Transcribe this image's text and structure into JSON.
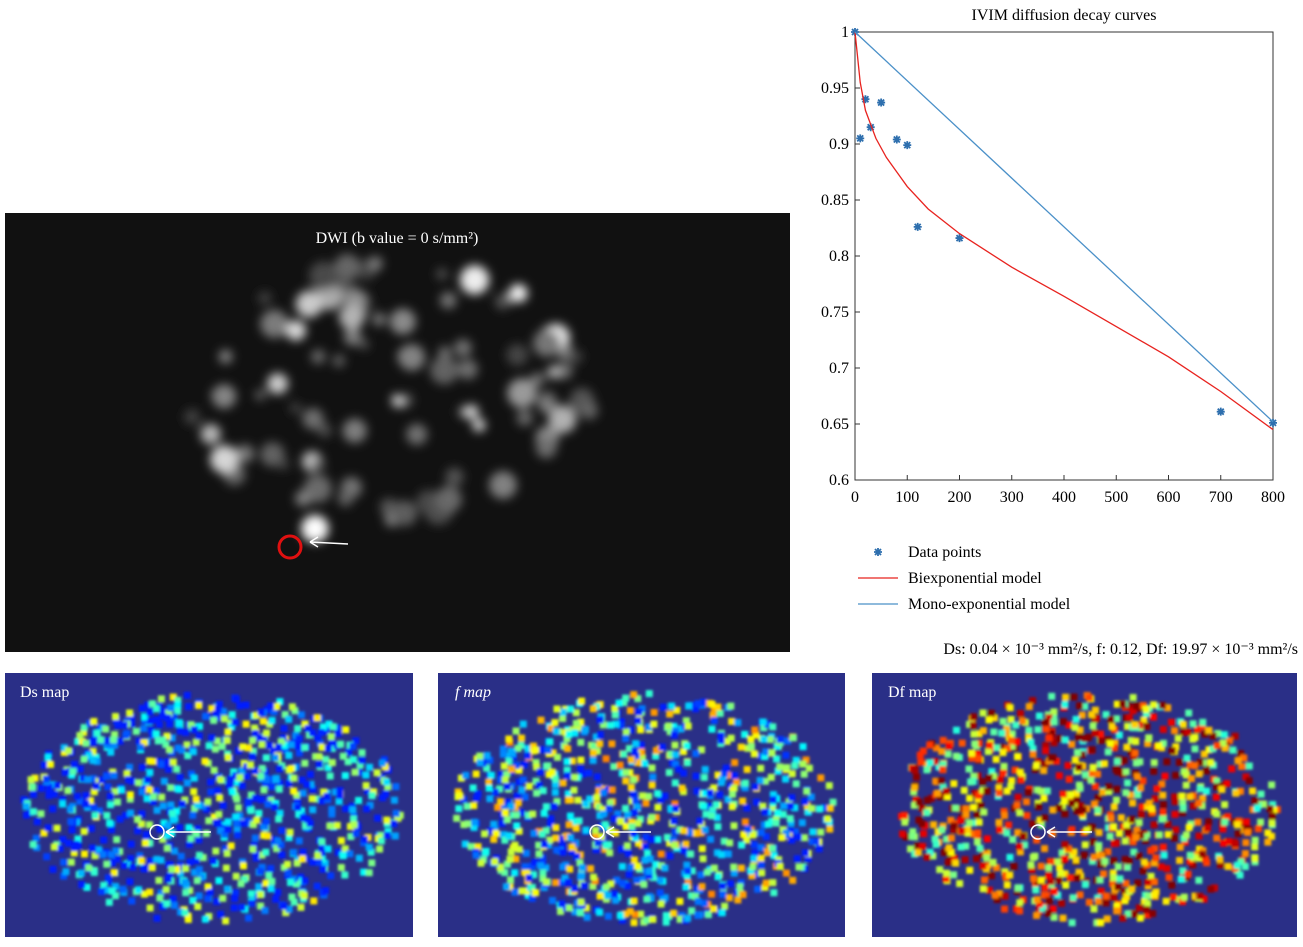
{
  "chart_data": {
    "type": "line",
    "title": "IVIM diffusion decay curves",
    "xlim": [
      0,
      800
    ],
    "xticks": [
      0,
      100,
      200,
      300,
      400,
      500,
      600,
      700,
      800
    ],
    "ylim": [
      0.6,
      1
    ],
    "yticks": [
      0.6,
      0.65,
      0.7,
      0.75,
      0.8,
      0.85,
      0.9,
      0.95,
      1
    ],
    "series": [
      {
        "name": "Data points",
        "color": "#2e6fae",
        "style": "markers",
        "x": [
          0,
          10,
          20,
          30,
          50,
          80,
          100,
          120,
          200,
          700,
          800
        ],
        "values": [
          1.0,
          0.905,
          0.94,
          0.915,
          0.937,
          0.904,
          0.899,
          0.826,
          0.816,
          0.661,
          0.651
        ]
      },
      {
        "name": "Biexponential model",
        "color": "#e8231f",
        "style": "line",
        "x": [
          0,
          10,
          20,
          40,
          60,
          80,
          100,
          140,
          200,
          300,
          400,
          500,
          600,
          700,
          800
        ],
        "values": [
          1.0,
          0.955,
          0.93,
          0.905,
          0.888,
          0.875,
          0.862,
          0.842,
          0.82,
          0.79,
          0.764,
          0.737,
          0.71,
          0.679,
          0.645
        ]
      },
      {
        "name": "Mono-exponential model",
        "color": "#4a90c8",
        "style": "line",
        "x": [
          0,
          800
        ],
        "values": [
          1.0,
          0.652
        ]
      }
    ]
  },
  "panels": {
    "dwi_title": "DWI (b value = 0 s/mm²)",
    "caption": "Ds: 0.04 × 10⁻³ mm²/s, f: 0.12, Df: 19.97 × 10⁻³ mm²/s",
    "maps": [
      "Ds map",
      "f map",
      "Df map"
    ]
  }
}
